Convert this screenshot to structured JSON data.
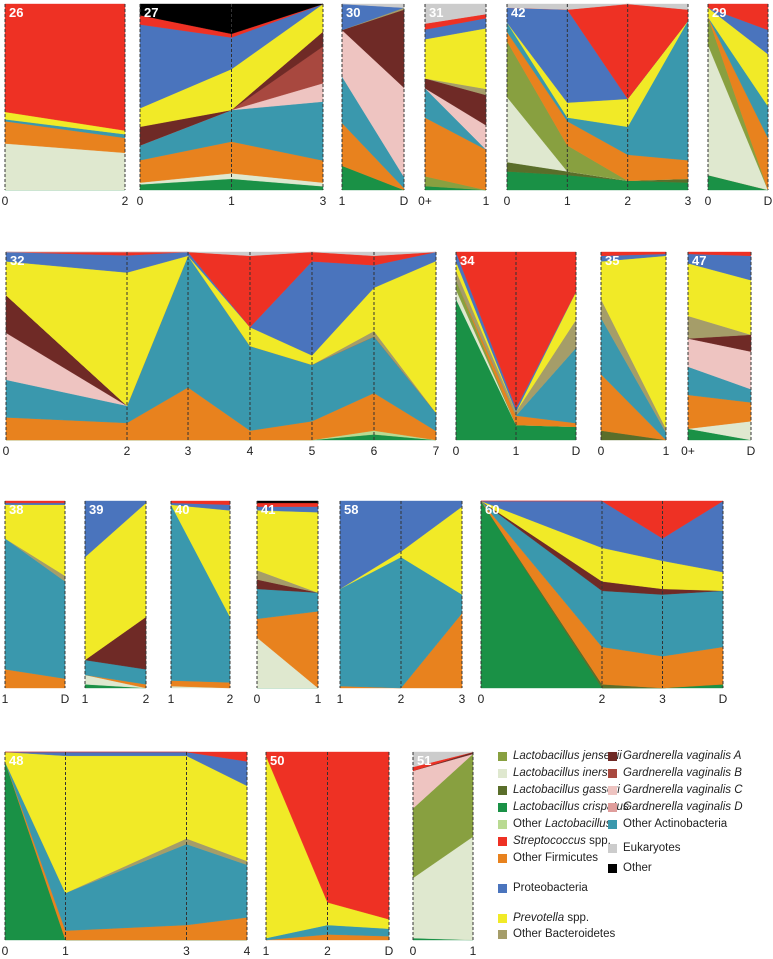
{
  "chart_data": {
    "type": "area",
    "stacking": "percent",
    "y_range": [
      0,
      100
    ],
    "categories": [
      {
        "key": "LJ",
        "name": "Lactobacillus jensenii",
        "italic": "Lactobacillus jensenii",
        "rest": "",
        "color": "#88a040"
      },
      {
        "key": "LI",
        "name": "Lactobacillus iners",
        "italic": "Lactobacillus iners",
        "rest": "",
        "color": "#dfe8cf"
      },
      {
        "key": "LG",
        "name": "Lactobacillus gasseri",
        "italic": "Lactobacillus gasseri",
        "rest": "",
        "color": "#5a6e2a"
      },
      {
        "key": "LC",
        "name": "Lactobacillus crispatus",
        "italic": "Lactobacillus crispatus",
        "rest": "",
        "color": "#1a9146"
      },
      {
        "key": "OL",
        "name": "Other Lactobacillus",
        "italic": "Lactobacillus",
        "rest": "Other ",
        "color": "#b9da92"
      },
      {
        "key": "ST",
        "name": "Streptococcus spp.",
        "italic": "Streptococcus",
        "rest": " spp.",
        "color": "#ee3124"
      },
      {
        "key": "OF",
        "name": "Other Firmicutes",
        "italic": "",
        "rest": "Other Firmicutes",
        "color": "#e8821e"
      },
      {
        "key": "PR",
        "name": "Proteobacteria",
        "italic": "",
        "rest": "Proteobacteria",
        "color": "#4a74bd"
      },
      {
        "key": "PV",
        "name": "Prevotella spp.",
        "italic": "Prevotella",
        "rest": " spp.",
        "color": "#f1ea27"
      },
      {
        "key": "OB",
        "name": "Other Bacteroidetes",
        "italic": "",
        "rest": "Other Bacteroidetes",
        "color": "#a59d69"
      },
      {
        "key": "GA",
        "name": "Gardnerella vaginalis A",
        "italic": "Gardnerella vaginalis A",
        "rest": "",
        "color": "#6f2a26"
      },
      {
        "key": "GB",
        "name": "Gardnerella vaginalis B",
        "italic": "Gardnerella vaginalis B",
        "rest": "",
        "color": "#a8483f"
      },
      {
        "key": "GC",
        "name": "Gardnerella vaginalis C",
        "italic": "Gardnerella vaginalis C",
        "rest": "",
        "color": "#eec4c1"
      },
      {
        "key": "GD",
        "name": "Gardnerella vaginalis D",
        "italic": "Gardnerella vaginalis D",
        "rest": "",
        "color": "#df9d9b"
      },
      {
        "key": "OA",
        "name": "Other Actinobacteria",
        "italic": "",
        "rest": "Other Actinobacteria",
        "color": "#3a98ad"
      },
      {
        "key": "EU",
        "name": "Eukaryotes",
        "italic": "",
        "rest": "Eukaryotes",
        "color": "#cccccc"
      },
      {
        "key": "OT",
        "name": "Other",
        "italic": "",
        "rest": "Other",
        "color": "#000000"
      }
    ],
    "panels": [
      {
        "id": "26",
        "x": [
          "0",
          "2"
        ],
        "values": {
          "LC": [
            0,
            0
          ],
          "LI": [
            25,
            20
          ],
          "OF": [
            12,
            8
          ],
          "PV": [
            4,
            2
          ],
          "OA": [
            1,
            2
          ],
          "ST": [
            58,
            68
          ]
        }
      },
      {
        "id": "27",
        "x": [
          "0",
          "1",
          "3"
        ],
        "values": {
          "LC": [
            3,
            6,
            2
          ],
          "LI": [
            1,
            3,
            2
          ],
          "OF": [
            12,
            17,
            12
          ],
          "OA": [
            8,
            17,
            32
          ],
          "GA": [
            10,
            0,
            8
          ],
          "GB": [
            0,
            0,
            20
          ],
          "GC": [
            0,
            0,
            10
          ],
          "PV": [
            10,
            22,
            15
          ],
          "PR": [
            45,
            17,
            0
          ],
          "ST": [
            5,
            2,
            0
          ],
          "OT": [
            6,
            16,
            0
          ]
        }
      },
      {
        "id": "30",
        "x": [
          "1",
          "D"
        ],
        "values": {
          "LC": [
            13,
            0
          ],
          "OB": [
            0,
            1
          ],
          "OF": [
            23,
            1
          ],
          "OA": [
            25,
            6
          ],
          "GA": [
            0,
            42
          ],
          "GC": [
            25,
            48
          ],
          "PR": [
            14,
            0
          ],
          "EU": [
            0,
            2
          ]
        }
      },
      {
        "id": "31",
        "x": [
          "0+",
          "1"
        ],
        "values": {
          "LC": [
            2,
            0
          ],
          "LJ": [
            5,
            0
          ],
          "OF": [
            30,
            20
          ],
          "OA": [
            15,
            0
          ],
          "GA": [
            5,
            15
          ],
          "GC": [
            0,
            12
          ],
          "OB": [
            0,
            3
          ],
          "PR": [
            5,
            5
          ],
          "PV": [
            20,
            30
          ],
          "ST": [
            3,
            2
          ],
          "EU": [
            10,
            5
          ]
        }
      },
      {
        "id": "42",
        "x": [
          "0",
          "1",
          "2",
          "3"
        ],
        "values": {
          "LC": [
            10,
            8,
            5,
            4
          ],
          "LG": [
            5,
            2,
            0,
            2
          ],
          "LI": [
            35,
            0,
            0,
            0
          ],
          "LJ": [
            30,
            14,
            0,
            0
          ],
          "OF": [
            5,
            13,
            14,
            10
          ],
          "OA": [
            5,
            2,
            15,
            75
          ],
          "PV": [
            0,
            8,
            15,
            0
          ],
          "PR": [
            8,
            50,
            0,
            0
          ],
          "ST": [
            0,
            0,
            51,
            6
          ],
          "EU": [
            2,
            3,
            0,
            3
          ]
        }
      },
      {
        "id": "29",
        "x": [
          "0",
          "D"
        ],
        "values": {
          "LC": [
            8,
            0
          ],
          "LG": [
            0,
            0
          ],
          "LI": [
            70,
            0
          ],
          "LJ": [
            15,
            0
          ],
          "OF": [
            0,
            28
          ],
          "PR": [
            0,
            13
          ],
          "OA": [
            0,
            17
          ],
          "PV": [
            5,
            28
          ],
          "ST": [
            2,
            14
          ]
        }
      },
      {
        "id": "32",
        "x": [
          "0",
          "2",
          "3",
          "4",
          "5",
          "6",
          "7"
        ],
        "values": {
          "LC": [
            0,
            0,
            0,
            0,
            0,
            3,
            0
          ],
          "OL": [
            0,
            0,
            0,
            0,
            0,
            2,
            0
          ],
          "OF": [
            12,
            10,
            28,
            5,
            10,
            20,
            5
          ],
          "OA": [
            20,
            10,
            70,
            45,
            30,
            30,
            10
          ],
          "GA": [
            20,
            0,
            0,
            0,
            0,
            0,
            0
          ],
          "GC": [
            25,
            0,
            0,
            0,
            0,
            0,
            0
          ],
          "OB": [
            0,
            0,
            0,
            0,
            0,
            3,
            0
          ],
          "PV": [
            18,
            78,
            0,
            10,
            5,
            23,
            84
          ],
          "PR": [
            5,
            10,
            2,
            0,
            50,
            12,
            5
          ],
          "ST": [
            0,
            2,
            0,
            38,
            5,
            5,
            0
          ],
          "EU": [
            0,
            0,
            0,
            2,
            0,
            2,
            0
          ]
        }
      },
      {
        "id": "34",
        "x": [
          "0",
          "1",
          "D"
        ],
        "values": {
          "LC": [
            75,
            8,
            7
          ],
          "OF": [
            0,
            5,
            2
          ],
          "OA": [
            0,
            0,
            40
          ],
          "OB": [
            5,
            2,
            15
          ],
          "LI": [
            5,
            0,
            0
          ],
          "LJ": [
            5,
            0,
            0
          ],
          "PV": [
            5,
            0,
            15
          ],
          "PR": [
            5,
            2,
            0
          ],
          "ST": [
            0,
            83,
            21
          ]
        }
      },
      {
        "id": "35",
        "x": [
          "0",
          "1"
        ],
        "values": {
          "LG": [
            5,
            0
          ],
          "OF": [
            30,
            0
          ],
          "OA": [
            30,
            4
          ],
          "OB": [
            10,
            2
          ],
          "PV": [
            20,
            92
          ],
          "PR": [
            3,
            1
          ],
          "ST": [
            2,
            1
          ]
        }
      },
      {
        "id": "47",
        "x": [
          "0+",
          "D"
        ],
        "values": {
          "LC": [
            6,
            0
          ],
          "LI": [
            0,
            10
          ],
          "OF": [
            18,
            10
          ],
          "OA": [
            15,
            7
          ],
          "GA": [
            0,
            9
          ],
          "GC": [
            15,
            20
          ],
          "OB": [
            12,
            0
          ],
          "PV": [
            28,
            29
          ],
          "PR": [
            5,
            13
          ],
          "ST": [
            1,
            2
          ]
        }
      },
      {
        "id": "38",
        "x": [
          "1",
          "D"
        ],
        "values": {
          "OF": [
            10,
            5
          ],
          "OA": [
            70,
            52
          ],
          "OB": [
            0,
            3
          ],
          "PV": [
            18,
            38
          ],
          "PR": [
            1,
            1
          ],
          "ST": [
            1,
            1
          ]
        }
      },
      {
        "id": "39",
        "x": [
          "1",
          "2"
        ],
        "values": {
          "LC": [
            2,
            0
          ],
          "LI": [
            5,
            0
          ],
          "OF": [
            0,
            2
          ],
          "OA": [
            8,
            8
          ],
          "GA": [
            0,
            28
          ],
          "PV": [
            55,
            61
          ],
          "PR": [
            30,
            1
          ]
        }
      },
      {
        "id": "40",
        "x": [
          "1",
          "2"
        ],
        "values": {
          "LI": [
            1,
            0
          ],
          "OF": [
            3,
            3
          ],
          "OA": [
            94,
            35
          ],
          "PV": [
            0,
            57
          ],
          "PR": [
            1,
            3
          ],
          "ST": [
            1,
            2
          ]
        }
      },
      {
        "id": "41",
        "x": [
          "0",
          "1"
        ],
        "values": {
          "LC": [
            0,
            0
          ],
          "LI": [
            27,
            0
          ],
          "OF": [
            10,
            41
          ],
          "OA": [
            16,
            10
          ],
          "OB": [
            5,
            0
          ],
          "GA": [
            5,
            0
          ],
          "PV": [
            32,
            43
          ],
          "PR": [
            2,
            3
          ],
          "ST": [
            2,
            2
          ],
          "OT": [
            1,
            1
          ]
        }
      },
      {
        "id": "58",
        "x": [
          "1",
          "2",
          "3"
        ],
        "values": {
          "OF": [
            1,
            0,
            40
          ],
          "OA": [
            52,
            70,
            10
          ],
          "PV": [
            0,
            3,
            47
          ],
          "PR": [
            47,
            27,
            3
          ]
        }
      },
      {
        "id": "60",
        "x": [
          "0",
          "2",
          "3",
          "D"
        ],
        "values": {
          "LC": [
            100,
            0,
            0,
            2
          ],
          "LG": [
            0,
            2,
            0,
            0
          ],
          "OF": [
            0,
            20,
            17,
            20
          ],
          "OA": [
            0,
            30,
            33,
            30
          ],
          "GA": [
            0,
            5,
            3,
            0
          ],
          "PV": [
            0,
            18,
            15,
            10
          ],
          "PR": [
            0,
            25,
            12,
            38
          ],
          "ST": [
            0,
            0,
            20,
            0
          ]
        }
      },
      {
        "id": "48",
        "x": [
          "0",
          "1",
          "3",
          "4"
        ],
        "values": {
          "LC": [
            95,
            0,
            0,
            0
          ],
          "OF": [
            0,
            5,
            8,
            12
          ],
          "OA": [
            0,
            20,
            43,
            28
          ],
          "OB": [
            0,
            0,
            3,
            2
          ],
          "PV": [
            5,
            73,
            44,
            40
          ],
          "PR": [
            0,
            2,
            2,
            13
          ],
          "ST": [
            0,
            0,
            0,
            5
          ]
        }
      },
      {
        "id": "50",
        "x": [
          "1",
          "2",
          "D"
        ],
        "values": {
          "OF": [
            0,
            3,
            2
          ],
          "OA": [
            1,
            5,
            4
          ],
          "PV": [
            97,
            12,
            5
          ],
          "ST": [
            2,
            80,
            89
          ]
        }
      },
      {
        "id": "51",
        "x": [
          "0",
          "1"
        ],
        "values": {
          "LC": [
            1,
            0
          ],
          "LI": [
            32,
            55
          ],
          "LJ": [
            37,
            44
          ],
          "GA": [
            0,
            1
          ],
          "GC": [
            20,
            0
          ],
          "ST": [
            2,
            0
          ],
          "EU": [
            8,
            0
          ]
        }
      }
    ]
  }
}
